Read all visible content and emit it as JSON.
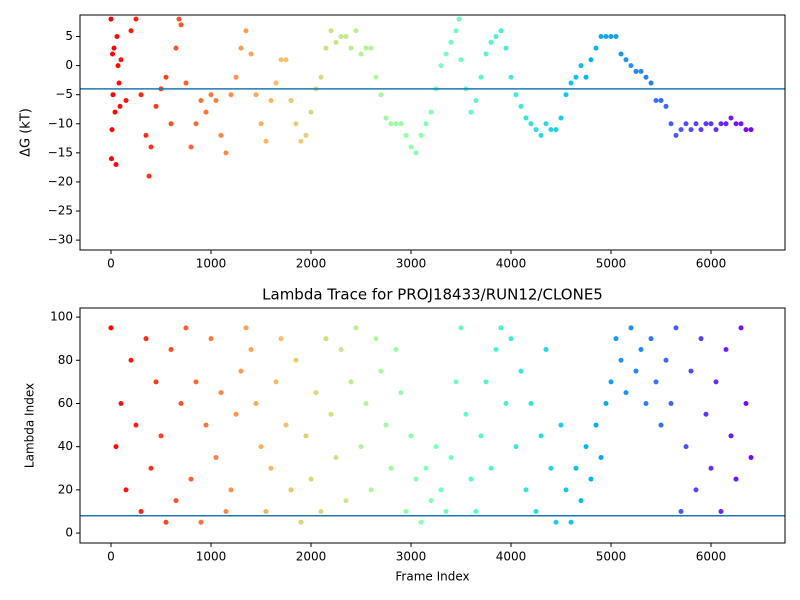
{
  "chart_data": [
    {
      "type": "scatter",
      "ylabel": "ΔG (kT)",
      "colormap": "rainbow_r",
      "hline": -4,
      "hline_color": "#1f77b4",
      "xlim": [
        -310,
        6740
      ],
      "ylim": [
        -31.7,
        8.7
      ],
      "xticks": [
        0,
        1000,
        2000,
        3000,
        4000,
        5000,
        6000
      ],
      "yticks": [
        5,
        0,
        {
          "value": -5,
          "label": "−5"
        },
        {
          "value": -10,
          "label": "−10"
        },
        {
          "value": -15,
          "label": "−15"
        },
        {
          "value": -20,
          "label": "−20"
        },
        {
          "value": -25,
          "label": "−25"
        },
        {
          "value": -30,
          "label": "−30"
        }
      ],
      "x": [
        0,
        5,
        10,
        15,
        20,
        30,
        40,
        50,
        60,
        70,
        80,
        90,
        100,
        150,
        200,
        250,
        300,
        350,
        380,
        400,
        450,
        500,
        550,
        600,
        650,
        680,
        700,
        750,
        800,
        850,
        900,
        950,
        1000,
        1050,
        1100,
        1150,
        1200,
        1250,
        1300,
        1350,
        1400,
        1450,
        1500,
        1550,
        1600,
        1650,
        1700,
        1750,
        1800,
        1850,
        1900,
        1950,
        2000,
        2050,
        2100,
        2150,
        2200,
        2250,
        2300,
        2350,
        2400,
        2450,
        2500,
        2550,
        2600,
        2650,
        2700,
        2750,
        2800,
        2850,
        2900,
        2950,
        3000,
        3050,
        3100,
        3150,
        3200,
        3250,
        3300,
        3350,
        3400,
        3450,
        3480,
        3500,
        3550,
        3600,
        3650,
        3700,
        3750,
        3800,
        3850,
        3900,
        3950,
        4000,
        4050,
        4100,
        4150,
        4200,
        4250,
        4300,
        4350,
        4400,
        4450,
        4500,
        4550,
        4600,
        4650,
        4700,
        4750,
        4800,
        4850,
        4900,
        4950,
        5000,
        5050,
        5100,
        5150,
        5200,
        5250,
        5300,
        5350,
        5400,
        5450,
        5500,
        5550,
        5600,
        5650,
        5700,
        5750,
        5800,
        5850,
        5900,
        5950,
        6000,
        6050,
        6100,
        6150,
        6200,
        6250,
        6300,
        6350,
        6400
      ],
      "values": [
        8,
        -16,
        -11,
        2,
        -5,
        3,
        -8,
        -17,
        5,
        0,
        -3,
        -7,
        1,
        -6,
        6,
        8,
        -5,
        -12,
        -19,
        -14,
        -7,
        -4,
        -2,
        -10,
        3,
        8,
        7,
        -3,
        -14,
        -10,
        -6,
        -8,
        -5,
        -6,
        -12,
        -15,
        -5,
        -2,
        3,
        6,
        2,
        -5,
        -10,
        -13,
        -6,
        -3,
        1,
        1,
        -6,
        -10,
        -13,
        -12,
        -8,
        -4,
        -2,
        3,
        6,
        4,
        5,
        5,
        3,
        6,
        2,
        3,
        3,
        -2,
        -5,
        -9,
        -10,
        -10,
        -10,
        -12,
        -14,
        -15,
        -12,
        -10,
        -8,
        -4,
        0,
        2,
        4,
        6,
        8,
        1,
        -4,
        -8,
        -6,
        -2,
        2,
        4,
        5,
        6,
        3,
        -2,
        -5,
        -7,
        -9,
        -10,
        -11,
        -12,
        -10,
        -11,
        -11,
        -9,
        -5,
        -3,
        -2,
        0,
        -2,
        1,
        3,
        5,
        5,
        5,
        5,
        2,
        1,
        0,
        -1,
        -1,
        -2,
        -3,
        -6,
        -6,
        -7,
        -10,
        -12,
        -11,
        -10,
        -11,
        -10,
        -11,
        -10,
        -10,
        -11,
        -10,
        -10,
        -9,
        -10,
        -10,
        -11,
        -11
      ]
    },
    {
      "type": "scatter",
      "title": "Lambda Trace for PROJ18433/RUN12/CLONE5",
      "xlabel": "Frame Index",
      "ylabel": "Lambda Index",
      "colormap": "rainbow_r",
      "hline": 8,
      "hline_color": "#1f77b4",
      "xlim": [
        -310,
        6740
      ],
      "ylim": [
        -4.6,
        104.2
      ],
      "xticks": [
        0,
        1000,
        2000,
        3000,
        4000,
        5000,
        6000
      ],
      "yticks": [
        0,
        20,
        40,
        60,
        80,
        100
      ],
      "x": [
        0,
        50,
        100,
        150,
        200,
        250,
        300,
        350,
        400,
        450,
        500,
        550,
        600,
        650,
        700,
        750,
        800,
        850,
        900,
        950,
        1000,
        1050,
        1100,
        1150,
        1200,
        1250,
        1300,
        1350,
        1400,
        1450,
        1500,
        1550,
        1600,
        1650,
        1700,
        1750,
        1800,
        1850,
        1900,
        1950,
        2000,
        2050,
        2100,
        2150,
        2200,
        2250,
        2300,
        2350,
        2400,
        2450,
        2500,
        2550,
        2600,
        2650,
        2700,
        2750,
        2800,
        2850,
        2900,
        2950,
        3000,
        3050,
        3100,
        3150,
        3200,
        3250,
        3300,
        3350,
        3400,
        3450,
        3500,
        3550,
        3600,
        3650,
        3700,
        3750,
        3800,
        3850,
        3900,
        3950,
        4000,
        4050,
        4100,
        4150,
        4200,
        4250,
        4300,
        4350,
        4400,
        4450,
        4500,
        4550,
        4600,
        4650,
        4700,
        4750,
        4800,
        4850,
        4900,
        4950,
        5000,
        5050,
        5100,
        5150,
        5200,
        5250,
        5300,
        5350,
        5400,
        5450,
        5500,
        5550,
        5600,
        5650,
        5700,
        5750,
        5800,
        5850,
        5900,
        5950,
        6000,
        6050,
        6100,
        6150,
        6200,
        6250,
        6300,
        6350,
        6400
      ],
      "values": [
        95,
        40,
        60,
        20,
        80,
        50,
        10,
        90,
        30,
        70,
        45,
        5,
        85,
        15,
        60,
        95,
        25,
        70,
        5,
        50,
        90,
        35,
        65,
        10,
        20,
        55,
        75,
        95,
        85,
        60,
        40,
        10,
        30,
        70,
        90,
        50,
        20,
        80,
        5,
        45,
        25,
        65,
        10,
        90,
        55,
        35,
        85,
        15,
        70,
        95,
        40,
        60,
        20,
        90,
        75,
        50,
        30,
        85,
        65,
        10,
        45,
        25,
        5,
        30,
        15,
        40,
        20,
        10,
        35,
        70,
        95,
        55,
        25,
        10,
        45,
        70,
        30,
        85,
        95,
        60,
        90,
        40,
        75,
        20,
        60,
        10,
        45,
        85,
        30,
        5,
        50,
        20,
        5,
        30,
        15,
        40,
        25,
        50,
        35,
        60,
        70,
        90,
        80,
        65,
        95,
        75,
        85,
        60,
        90,
        70,
        50,
        80,
        60,
        95,
        10,
        40,
        75,
        20,
        90,
        55,
        30,
        70,
        10,
        85,
        45,
        25,
        95,
        60,
        35
      ]
    }
  ]
}
